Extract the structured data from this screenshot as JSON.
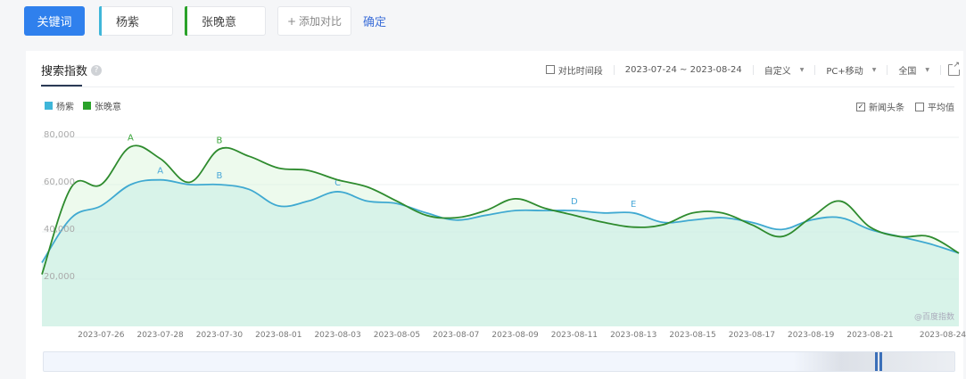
{
  "topbar": {
    "keyword_button": "关键词",
    "keywords": [
      {
        "label": "杨紫",
        "color": "#3fb6d9"
      },
      {
        "label": "张晚意",
        "color": "#2aa22a"
      }
    ],
    "add_compare": "添加对比",
    "add_icon": "+",
    "confirm": "确定"
  },
  "panel": {
    "title": "搜索指数",
    "help_icon": "?",
    "compare_period_label": "对比时间段",
    "date_range": "2023-07-24 ~ 2023-08-24",
    "range_mode": "自定义",
    "device": "PC+移动",
    "region": "全国",
    "news_headline_label": "新闻头条",
    "news_headline_checked": true,
    "average_label": "平均值",
    "average_checked": false,
    "watermark": "@百度指数"
  },
  "chart_data": {
    "type": "area",
    "title": "搜索指数",
    "xlabel": "",
    "ylabel": "",
    "ylim": [
      0,
      80000
    ],
    "y_ticks": [
      "80,000",
      "60,000",
      "40,000",
      "20,000"
    ],
    "x_tick_labels": [
      "2023-07-26",
      "2023-07-28",
      "2023-07-30",
      "2023-08-01",
      "2023-08-03",
      "2023-08-05",
      "2023-08-07",
      "2023-08-09",
      "2023-08-11",
      "2023-08-13",
      "2023-08-15",
      "2023-08-17",
      "2023-08-19",
      "2023-08-21",
      "2023-08-24"
    ],
    "x": [
      "2023-07-24",
      "2023-07-25",
      "2023-07-26",
      "2023-07-27",
      "2023-07-28",
      "2023-07-29",
      "2023-07-30",
      "2023-07-31",
      "2023-08-01",
      "2023-08-02",
      "2023-08-03",
      "2023-08-04",
      "2023-08-05",
      "2023-08-06",
      "2023-08-07",
      "2023-08-08",
      "2023-08-09",
      "2023-08-10",
      "2023-08-11",
      "2023-08-12",
      "2023-08-13",
      "2023-08-14",
      "2023-08-15",
      "2023-08-16",
      "2023-08-17",
      "2023-08-18",
      "2023-08-19",
      "2023-08-20",
      "2023-08-21",
      "2023-08-22",
      "2023-08-23",
      "2023-08-24"
    ],
    "grid": true,
    "legend_position": "top-left",
    "series": [
      {
        "name": "杨紫",
        "color": "#3fb6d9",
        "values": [
          27000,
          46000,
          51000,
          60000,
          62000,
          60000,
          60000,
          58000,
          51000,
          53000,
          57000,
          53000,
          52000,
          48000,
          45000,
          47000,
          49000,
          49000,
          49000,
          48000,
          48000,
          44000,
          45000,
          46000,
          44000,
          41000,
          45000,
          46000,
          41000,
          38000,
          35000,
          31000
        ],
        "annotations": [
          {
            "label": "A",
            "date": "2023-07-28"
          },
          {
            "label": "B",
            "date": "2023-07-30"
          },
          {
            "label": "C",
            "date": "2023-08-03"
          },
          {
            "label": "D",
            "date": "2023-08-11"
          },
          {
            "label": "E",
            "date": "2023-08-13"
          }
        ]
      },
      {
        "name": "张晚意",
        "color": "#2aa22a",
        "values": [
          22000,
          59000,
          60000,
          76000,
          71000,
          61000,
          75000,
          72000,
          67000,
          66000,
          62000,
          59000,
          53000,
          47000,
          46000,
          49000,
          54000,
          50000,
          47000,
          44000,
          42000,
          43000,
          48000,
          48000,
          43000,
          38000,
          46000,
          53000,
          42000,
          38000,
          38000,
          31000
        ],
        "annotations": [
          {
            "label": "A",
            "date": "2023-07-27"
          },
          {
            "label": "B",
            "date": "2023-07-30"
          }
        ]
      }
    ]
  }
}
